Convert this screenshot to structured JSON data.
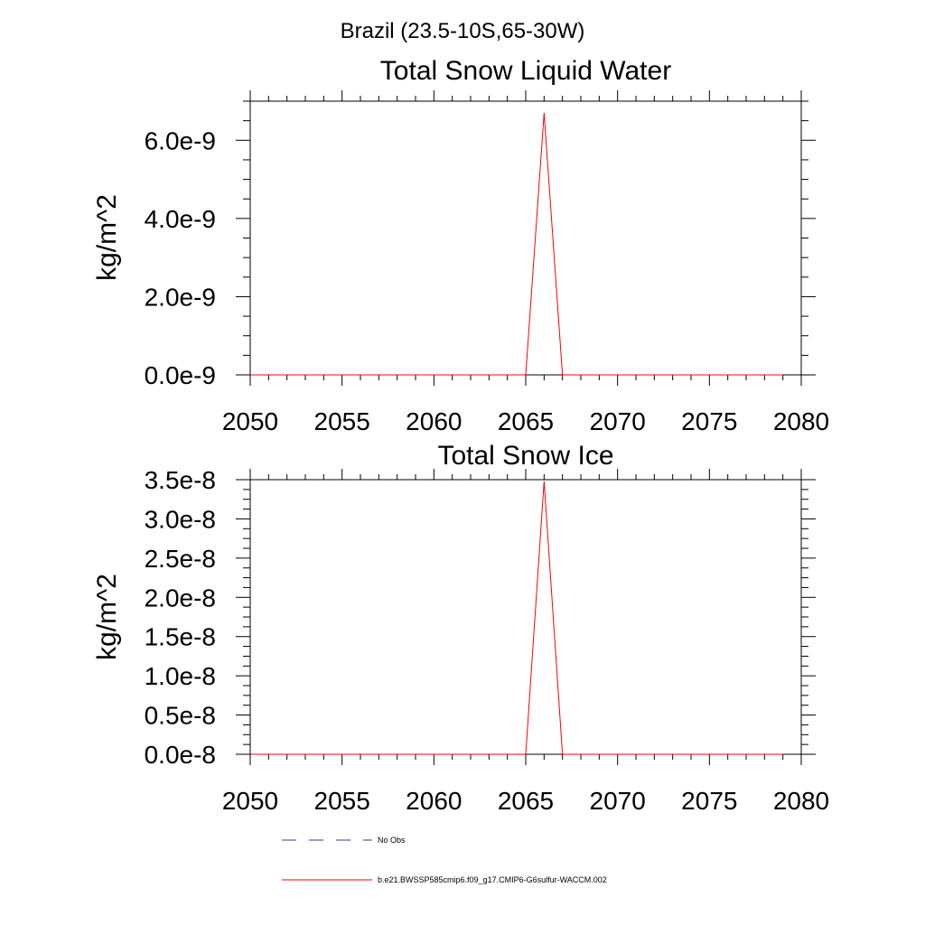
{
  "figure": {
    "suptitle": "Brazil (23.5-10S,65-30W)"
  },
  "chart_data": [
    {
      "type": "line",
      "title": "Total Snow Liquid Water",
      "xlabel": "",
      "ylabel": "kg/m^2",
      "xlim": [
        2050,
        2080
      ],
      "ylim": [
        0,
        7e-09
      ],
      "xticks": [
        2050,
        2055,
        2060,
        2065,
        2070,
        2075,
        2080
      ],
      "xtick_labels": [
        "2050",
        "2055",
        "2060",
        "2065",
        "2070",
        "2075",
        "2080"
      ],
      "yticks": [
        0,
        2e-09,
        4e-09,
        6e-09
      ],
      "ytick_labels": [
        "0.0e-9",
        "2.0e-9",
        "4.0e-9",
        "6.0e-9"
      ],
      "series": [
        {
          "name": "b.e21.BWSSP585cmip6.f09_g17.CMIP6-G6sulfur-WACCM.002",
          "color": "#ff0000",
          "x": [
            2050,
            2051,
            2052,
            2053,
            2054,
            2055,
            2056,
            2057,
            2058,
            2059,
            2060,
            2061,
            2062,
            2063,
            2064,
            2065,
            2066,
            2067,
            2068,
            2069,
            2070,
            2071,
            2072,
            2073,
            2074,
            2075,
            2076,
            2077,
            2078,
            2079
          ],
          "y": [
            0,
            0,
            0,
            0,
            0,
            0,
            0,
            0,
            0,
            0,
            0,
            0,
            0,
            0,
            0,
            0,
            6.7e-09,
            0,
            0,
            0,
            0,
            0,
            0,
            0,
            0,
            0,
            0,
            0,
            0,
            0
          ]
        }
      ]
    },
    {
      "type": "line",
      "title": "Total Snow Ice",
      "xlabel": "",
      "ylabel": "kg/m^2",
      "xlim": [
        2050,
        2080
      ],
      "ylim": [
        0,
        3.5e-08
      ],
      "xticks": [
        2050,
        2055,
        2060,
        2065,
        2070,
        2075,
        2080
      ],
      "xtick_labels": [
        "2050",
        "2055",
        "2060",
        "2065",
        "2070",
        "2075",
        "2080"
      ],
      "yticks": [
        0,
        5e-09,
        1e-08,
        1.5e-08,
        2e-08,
        2.5e-08,
        3e-08,
        3.5e-08
      ],
      "ytick_labels": [
        "0.0e-8",
        "0.5e-8",
        "1.0e-8",
        "1.5e-8",
        "2.0e-8",
        "2.5e-8",
        "3.0e-8",
        "3.5e-8"
      ],
      "series": [
        {
          "name": "b.e21.BWSSP585cmip6.f09_g17.CMIP6-G6sulfur-WACCM.002",
          "color": "#ff0000",
          "x": [
            2050,
            2051,
            2052,
            2053,
            2054,
            2055,
            2056,
            2057,
            2058,
            2059,
            2060,
            2061,
            2062,
            2063,
            2064,
            2065,
            2066,
            2067,
            2068,
            2069,
            2070,
            2071,
            2072,
            2073,
            2074,
            2075,
            2076,
            2077,
            2078,
            2079
          ],
          "y": [
            0,
            0,
            0,
            0,
            0,
            0,
            0,
            0,
            0,
            0,
            0,
            0,
            0,
            0,
            0,
            0,
            3.48e-08,
            0,
            0,
            0,
            0,
            0,
            0,
            0,
            0,
            0,
            0,
            0,
            0,
            0
          ]
        }
      ]
    }
  ],
  "legend": {
    "placement": "bottom",
    "items": [
      {
        "label": "No Obs",
        "color": "#3a3a8c",
        "style": "dashed"
      },
      {
        "label": "b.e21.BWSSP585cmip6.f09_g17.CMIP6-G6sulfur-WACCM.002",
        "color": "#ff0000",
        "style": "solid"
      }
    ]
  },
  "colors": {
    "axis": "#000000",
    "series": "#ff0000",
    "obs": "#3a3a8c"
  }
}
